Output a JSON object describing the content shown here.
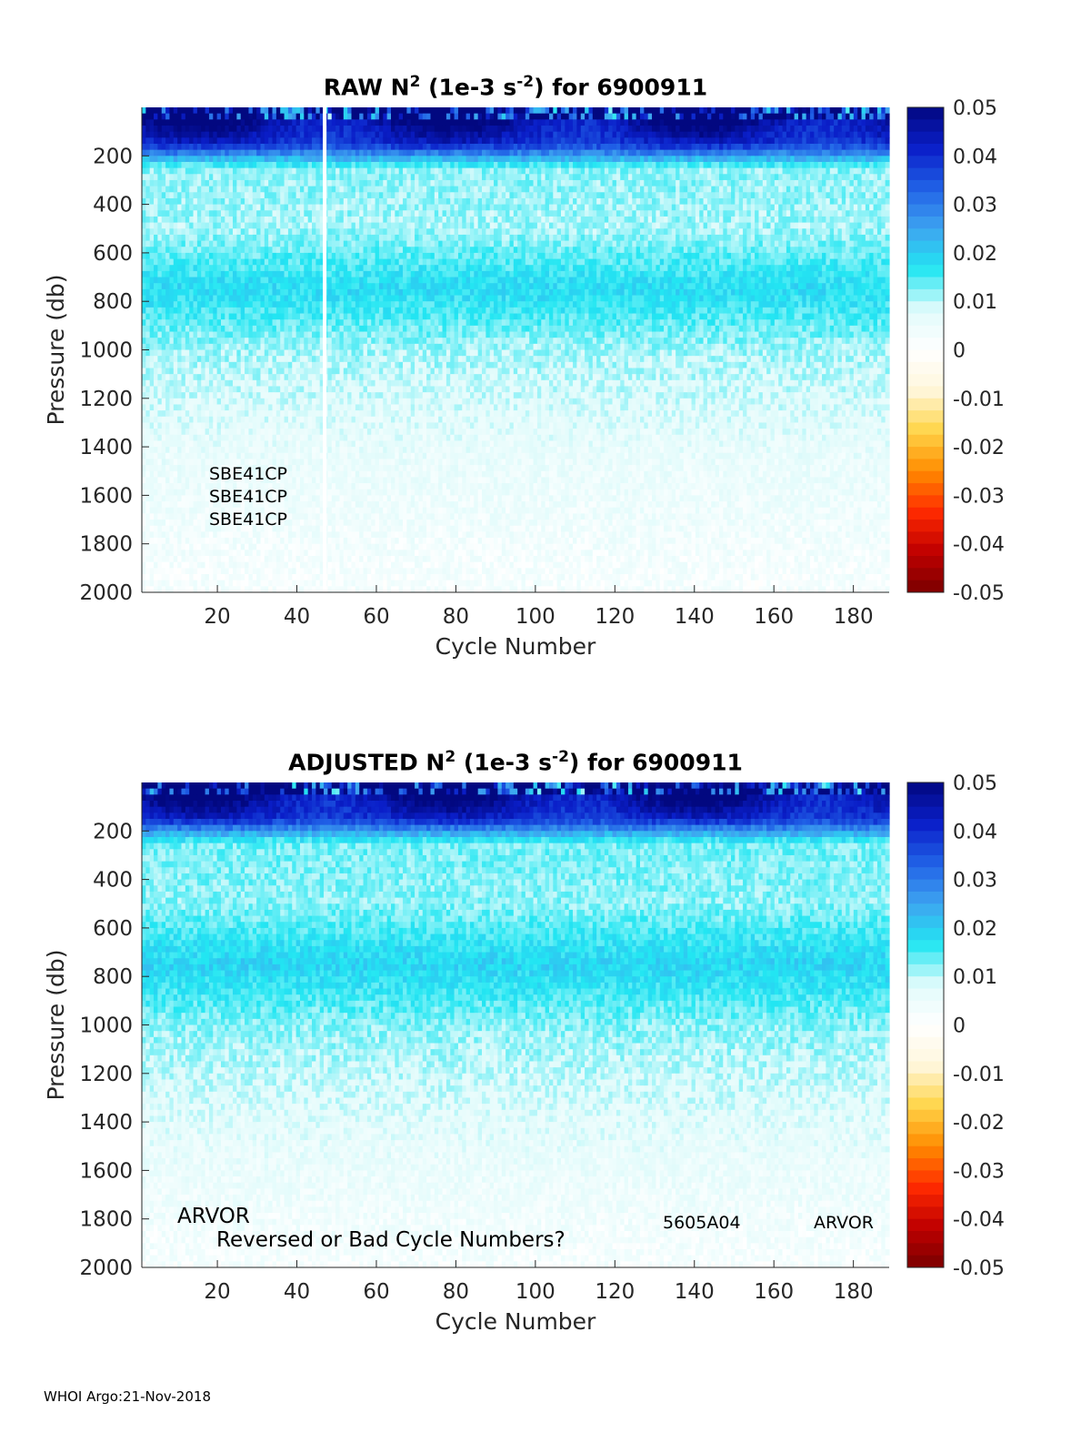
{
  "footer": "WHOI Argo:21-Nov-2018",
  "colors": {
    "colormap": [
      "#7a0000",
      "#c00000",
      "#ff2a00",
      "#ff8c00",
      "#ffd54a",
      "#fff7dc",
      "#ffffff",
      "#e0fbfb",
      "#22e6f2",
      "#3ea4f0",
      "#2060e6",
      "#0a1ec8",
      "#020880"
    ],
    "gap_line": "#ffffff"
  },
  "chart_data": [
    {
      "type": "heatmap",
      "title_prefix": "RAW N",
      "title_sup1": "2",
      "title_mid": " (1e-3 s",
      "title_sup2": "-2",
      "title_suffix": ") for 6900911",
      "xlabel": "Cycle Number",
      "ylabel": "Pressure (db)",
      "xlim": [
        1,
        189
      ],
      "ylim": [
        2000,
        0
      ],
      "x_ticks": [
        20,
        40,
        60,
        80,
        100,
        120,
        140,
        160,
        180
      ],
      "y_ticks": [
        200,
        400,
        600,
        800,
        1000,
        1200,
        1400,
        1600,
        1800,
        2000
      ],
      "colorbar": {
        "min": -0.05,
        "max": 0.05,
        "ticks": [
          "0.05",
          "0.04",
          "0.03",
          "0.02",
          "0.01",
          "0",
          "-0.01",
          "-0.02",
          "-0.03",
          "-0.04",
          "-0.05"
        ]
      },
      "missing_cycles": [
        47
      ],
      "annotations": [
        "SBE41CP",
        "SBE41CP",
        "SBE41CP"
      ],
      "profile": [
        {
          "pressure": 20,
          "value": 0.05
        },
        {
          "pressure": 150,
          "value": 0.04
        },
        {
          "pressure": 250,
          "value": 0.012
        },
        {
          "pressure": 500,
          "value": 0.011
        },
        {
          "pressure": 750,
          "value": 0.018
        },
        {
          "pressure": 1000,
          "value": 0.011
        },
        {
          "pressure": 1400,
          "value": 0.006
        },
        {
          "pressure": 2000,
          "value": 0.002
        }
      ]
    },
    {
      "type": "heatmap",
      "title_prefix": "ADJUSTED N",
      "title_sup1": "2",
      "title_mid": " (1e-3 s",
      "title_sup2": "-2",
      "title_suffix": ") for 6900911",
      "xlabel": "Cycle Number",
      "ylabel": "Pressure (db)",
      "xlim": [
        1,
        189
      ],
      "ylim": [
        2000,
        0
      ],
      "x_ticks": [
        20,
        40,
        60,
        80,
        100,
        120,
        140,
        160,
        180
      ],
      "y_ticks": [
        200,
        400,
        600,
        800,
        1000,
        1200,
        1400,
        1600,
        1800,
        2000
      ],
      "colorbar": {
        "min": -0.05,
        "max": 0.05,
        "ticks": [
          "0.05",
          "0.04",
          "0.03",
          "0.02",
          "0.01",
          "0",
          "-0.01",
          "-0.02",
          "-0.03",
          "-0.04",
          "-0.05"
        ]
      },
      "missing_cycles": [],
      "annotations": [
        "ARVOR",
        "Reversed or Bad Cycle Numbers?",
        "5605A04",
        "ARVOR"
      ],
      "profile": [
        {
          "pressure": 20,
          "value": 0.05
        },
        {
          "pressure": 150,
          "value": 0.04
        },
        {
          "pressure": 250,
          "value": 0.013
        },
        {
          "pressure": 500,
          "value": 0.012
        },
        {
          "pressure": 750,
          "value": 0.019
        },
        {
          "pressure": 1000,
          "value": 0.012
        },
        {
          "pressure": 1400,
          "value": 0.007
        },
        {
          "pressure": 2000,
          "value": 0.002
        }
      ]
    }
  ]
}
